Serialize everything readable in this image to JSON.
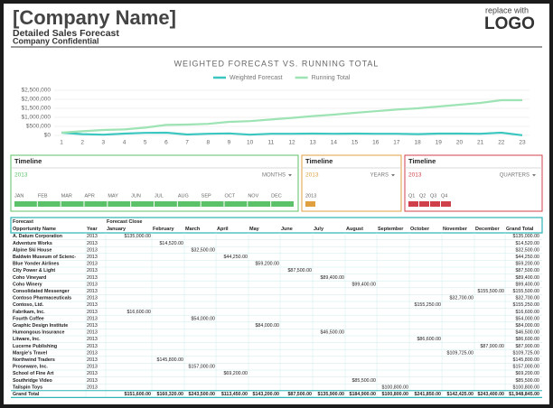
{
  "header": {
    "title": "[Company Name]",
    "subtitle": "Detailed Sales Forecast",
    "note": "Company Confidential",
    "logo_caption": "replace with",
    "logo": "LOGO"
  },
  "chart_data": {
    "type": "line",
    "title": "WEIGHTED FORECAST VS. RUNNING TOTAL",
    "categories": [
      1,
      2,
      3,
      4,
      5,
      6,
      7,
      8,
      9,
      10,
      11,
      12,
      13,
      14,
      15,
      16,
      17,
      18,
      19,
      20,
      21,
      22,
      23
    ],
    "series": [
      {
        "name": "Weighted Forecast",
        "color": "#3cc6c0",
        "values": [
          150000,
          70000,
          40000,
          100000,
          140000,
          150000,
          50000,
          90000,
          110000,
          40000,
          90000,
          90000,
          100000,
          90000,
          100000,
          90000,
          90000,
          70000,
          100000,
          100000,
          90000,
          150000,
          10000
        ]
      },
      {
        "name": "Running Total",
        "color": "#9de3b4",
        "values": [
          150000,
          230000,
          300000,
          330000,
          430000,
          580000,
          600000,
          640000,
          750000,
          790000,
          880000,
          970000,
          1070000,
          1150000,
          1250000,
          1340000,
          1430000,
          1500000,
          1600000,
          1700000,
          1800000,
          1950000,
          1950000
        ]
      }
    ],
    "ylim": [
      0,
      2500000
    ],
    "yticks": [
      {
        "value": 0,
        "label": "$0"
      },
      {
        "value": 500000,
        "label": "$500,000"
      },
      {
        "value": 1000000,
        "label": "$1,000,000"
      },
      {
        "value": 1500000,
        "label": "$1,500,000"
      },
      {
        "value": 2000000,
        "label": "$2,000,000"
      },
      {
        "value": 2500000,
        "label": "$2,500,000"
      }
    ],
    "grid": true,
    "legend": "top"
  },
  "timelines": [
    {
      "title": "Timeline",
      "year": "2013",
      "level": "MONTHS",
      "color": "#5cc26a",
      "items": [
        "JAN",
        "FEB",
        "MAR",
        "APR",
        "MAY",
        "JUN",
        "JUL",
        "AUG",
        "SEP",
        "OCT",
        "NOV",
        "DEC"
      ]
    },
    {
      "title": "Timeline",
      "year": "2013",
      "level": "YEARS",
      "color": "#e0a040",
      "items": [
        "2013"
      ]
    },
    {
      "title": "Timeline",
      "year": "2013",
      "level": "QUARTERS",
      "color": "#d0404a",
      "items": [
        "Q1",
        "Q2",
        "Q3",
        "Q4"
      ]
    }
  ],
  "table": {
    "group_header": [
      "Forecast",
      "Forecast Close"
    ],
    "columns": [
      "Opportunity Name",
      "Year",
      "January",
      "February",
      "March",
      "April",
      "May",
      "June",
      "July",
      "August",
      "September",
      "October",
      "November",
      "December",
      "Grand Total"
    ],
    "rows": [
      [
        "A. Datum Corporation",
        "2013",
        "$135,000.00",
        null,
        null,
        null,
        null,
        null,
        null,
        null,
        null,
        null,
        null,
        null,
        "$135,000.00"
      ],
      [
        "Adventure Works",
        "2013",
        null,
        "$14,520.00",
        null,
        null,
        null,
        null,
        null,
        null,
        null,
        null,
        null,
        null,
        "$14,520.00"
      ],
      [
        "Alpine Ski House",
        "2013",
        null,
        null,
        "$32,500.00",
        null,
        null,
        null,
        null,
        null,
        null,
        null,
        null,
        null,
        "$32,500.00"
      ],
      [
        "Baldwin Museum of Scienc-",
        "2013",
        null,
        null,
        null,
        "$44,250.00",
        null,
        null,
        null,
        null,
        null,
        null,
        null,
        null,
        "$44,250.00"
      ],
      [
        "Blue Yonder Airlines",
        "2013",
        null,
        null,
        null,
        null,
        "$59,200.00",
        null,
        null,
        null,
        null,
        null,
        null,
        null,
        "$59,200.00"
      ],
      [
        "City Power & Light",
        "2013",
        null,
        null,
        null,
        null,
        null,
        "$87,500.00",
        null,
        null,
        null,
        null,
        null,
        null,
        "$87,500.00"
      ],
      [
        "Coho Vineyard",
        "2013",
        null,
        null,
        null,
        null,
        null,
        null,
        "$89,400.00",
        null,
        null,
        null,
        null,
        null,
        "$89,400.00"
      ],
      [
        "Coho Winery",
        "2013",
        null,
        null,
        null,
        null,
        null,
        null,
        null,
        "$99,400.00",
        null,
        null,
        null,
        null,
        "$99,400.00"
      ],
      [
        "Consolidated Messenger",
        "2013",
        null,
        null,
        null,
        null,
        null,
        null,
        null,
        null,
        null,
        null,
        null,
        "$155,500.00",
        "$155,500.00"
      ],
      [
        "Contoso Pharmaceuticals",
        "2013",
        null,
        null,
        null,
        null,
        null,
        null,
        null,
        null,
        null,
        null,
        "$32,700.00",
        null,
        "$32,700.00"
      ],
      [
        "Contoso, Ltd.",
        "2013",
        null,
        null,
        null,
        null,
        null,
        null,
        null,
        null,
        null,
        "$155,250.00",
        null,
        null,
        "$155,250.00"
      ],
      [
        "Fabrikam, Inc.",
        "2013",
        "$16,600.00",
        null,
        null,
        null,
        null,
        null,
        null,
        null,
        null,
        null,
        null,
        null,
        "$16,600.00"
      ],
      [
        "Fourth Coffee",
        "2013",
        null,
        null,
        "$54,000.00",
        null,
        null,
        null,
        null,
        null,
        null,
        null,
        null,
        null,
        "$54,000.00"
      ],
      [
        "Graphic Design Institute",
        "2013",
        null,
        null,
        null,
        null,
        "$84,000.00",
        null,
        null,
        null,
        null,
        null,
        null,
        null,
        "$84,000.00"
      ],
      [
        "Humongous Insurance",
        "2013",
        null,
        null,
        null,
        null,
        null,
        null,
        "$46,500.00",
        null,
        null,
        null,
        null,
        null,
        "$46,500.00"
      ],
      [
        "Litware, Inc.",
        "2013",
        null,
        null,
        null,
        null,
        null,
        null,
        null,
        null,
        null,
        "$86,600.00",
        null,
        null,
        "$86,600.00"
      ],
      [
        "Lucerne Publishing",
        "2013",
        null,
        null,
        null,
        null,
        null,
        null,
        null,
        null,
        null,
        null,
        null,
        "$87,900.00",
        "$87,900.00"
      ],
      [
        "Margie's Travel",
        "2013",
        null,
        null,
        null,
        null,
        null,
        null,
        null,
        null,
        null,
        null,
        "$109,725.00",
        null,
        "$109,725.00"
      ],
      [
        "Northwind Traders",
        "2013",
        null,
        "$145,800.00",
        null,
        null,
        null,
        null,
        null,
        null,
        null,
        null,
        null,
        null,
        "$145,800.00"
      ],
      [
        "Proseware, Inc.",
        "2013",
        null,
        null,
        "$157,000.00",
        null,
        null,
        null,
        null,
        null,
        null,
        null,
        null,
        null,
        "$157,000.00"
      ],
      [
        "School of Fine Art",
        "2013",
        null,
        null,
        null,
        "$69,200.00",
        null,
        null,
        null,
        null,
        null,
        null,
        null,
        null,
        "$69,200.00"
      ],
      [
        "Southridge Video",
        "2013",
        null,
        null,
        null,
        null,
        null,
        null,
        null,
        "$85,500.00",
        null,
        null,
        null,
        null,
        "$85,500.00"
      ],
      [
        "Tailspin Toys",
        "2013",
        null,
        null,
        null,
        null,
        null,
        null,
        null,
        null,
        "$100,800.00",
        null,
        null,
        null,
        "$100,800.00"
      ]
    ],
    "total": [
      "Grand Total",
      null,
      "$151,600.00",
      "$160,320.00",
      "$243,500.00",
      "$113,450.00",
      "$143,200.00",
      "$87,500.00",
      "$135,900.00",
      "$184,900.00",
      "$100,800.00",
      "$241,850.00",
      "$142,425.00",
      "$243,400.00",
      "$1,948,845.00"
    ]
  }
}
